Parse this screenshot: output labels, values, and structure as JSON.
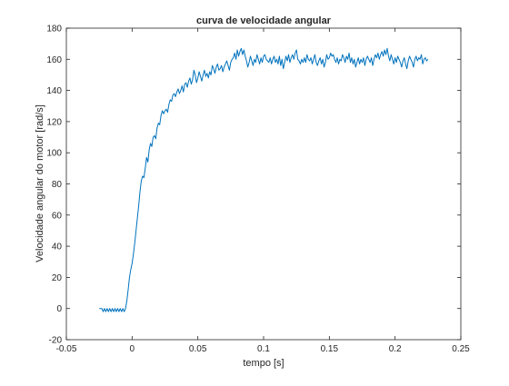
{
  "chart_data": {
    "type": "line",
    "title": "curva de velocidade angular",
    "xlabel": "tempo [s]",
    "ylabel": "Velocidade angular do motor [rad/s]",
    "xlim": [
      -0.05,
      0.25
    ],
    "ylim": [
      -20,
      180
    ],
    "xticks": [
      -0.05,
      0,
      0.05,
      0.1,
      0.15,
      0.2,
      0.25
    ],
    "xtick_labels": [
      "-0.05",
      "0",
      "0.05",
      "0.1",
      "0.15",
      "0.2",
      "0.25"
    ],
    "yticks": [
      -20,
      0,
      20,
      40,
      60,
      80,
      100,
      120,
      140,
      160,
      180
    ],
    "ytick_labels": [
      "-20",
      "0",
      "20",
      "40",
      "60",
      "80",
      "100",
      "120",
      "140",
      "160",
      "180"
    ],
    "grid": false,
    "line_color": "#0072BD",
    "series": [
      {
        "x": [
          -0.025,
          -0.023,
          -0.022,
          -0.021,
          -0.02,
          -0.019,
          -0.018,
          -0.017,
          -0.016,
          -0.015,
          -0.014,
          -0.013,
          -0.012,
          -0.011,
          -0.01,
          -0.009,
          -0.008,
          -0.007,
          -0.006,
          -0.005,
          -0.004,
          -0.003,
          -0.002,
          -0.001,
          0.0,
          0.001,
          0.002,
          0.003,
          0.004,
          0.005,
          0.006,
          0.007,
          0.008,
          0.009,
          0.01,
          0.011,
          0.012,
          0.013,
          0.014,
          0.015,
          0.016,
          0.017,
          0.018,
          0.019,
          0.02,
          0.021,
          0.022,
          0.023,
          0.024,
          0.025,
          0.026,
          0.027,
          0.028,
          0.029,
          0.03,
          0.031,
          0.032,
          0.033,
          0.034,
          0.035,
          0.036,
          0.037,
          0.038,
          0.039,
          0.04,
          0.041,
          0.042,
          0.043,
          0.044,
          0.045,
          0.046,
          0.047,
          0.048,
          0.049,
          0.05,
          0.051,
          0.052,
          0.053,
          0.054,
          0.055,
          0.056,
          0.057,
          0.058,
          0.059,
          0.06,
          0.061,
          0.062,
          0.063,
          0.064,
          0.065,
          0.066,
          0.067,
          0.068,
          0.069,
          0.07,
          0.071,
          0.072,
          0.073,
          0.074,
          0.075,
          0.076,
          0.077,
          0.078,
          0.079,
          0.08,
          0.081,
          0.082,
          0.083,
          0.084,
          0.085,
          0.086,
          0.087,
          0.088,
          0.089,
          0.09,
          0.091,
          0.092,
          0.093,
          0.094,
          0.095,
          0.096,
          0.097,
          0.098,
          0.099,
          0.1,
          0.101,
          0.102,
          0.103,
          0.104,
          0.105,
          0.106,
          0.107,
          0.108,
          0.109,
          0.11,
          0.111,
          0.112,
          0.113,
          0.114,
          0.115,
          0.116,
          0.117,
          0.118,
          0.119,
          0.12,
          0.121,
          0.122,
          0.123,
          0.124,
          0.125,
          0.126,
          0.127,
          0.128,
          0.129,
          0.13,
          0.131,
          0.132,
          0.133,
          0.134,
          0.135,
          0.136,
          0.137,
          0.138,
          0.139,
          0.14,
          0.141,
          0.142,
          0.143,
          0.144,
          0.145,
          0.146,
          0.147,
          0.148,
          0.149,
          0.15,
          0.151,
          0.152,
          0.153,
          0.154,
          0.155,
          0.156,
          0.157,
          0.158,
          0.159,
          0.16,
          0.161,
          0.162,
          0.163,
          0.164,
          0.165,
          0.166,
          0.167,
          0.168,
          0.169,
          0.17,
          0.171,
          0.172,
          0.173,
          0.174,
          0.175,
          0.176,
          0.177,
          0.178,
          0.179,
          0.18,
          0.181,
          0.182,
          0.183,
          0.184,
          0.185,
          0.186,
          0.187,
          0.188,
          0.189,
          0.19,
          0.191,
          0.192,
          0.193,
          0.194,
          0.195,
          0.196,
          0.197,
          0.198,
          0.199,
          0.2,
          0.201,
          0.202,
          0.203,
          0.204,
          0.205,
          0.206,
          0.207,
          0.208,
          0.209,
          0.21,
          0.211,
          0.212,
          0.213,
          0.214,
          0.215,
          0.216,
          0.217,
          0.218,
          0.219,
          0.22,
          0.221,
          0.222,
          0.223,
          0.224,
          0.225
        ],
        "y": [
          0,
          0,
          -2,
          0,
          -2,
          0,
          -2,
          0,
          -2,
          0,
          -2,
          0,
          -2,
          0,
          -2,
          0,
          -2,
          0,
          -2,
          0,
          5,
          12,
          20,
          25,
          29,
          35,
          42,
          50,
          58,
          66,
          75,
          82,
          85,
          84,
          90,
          97,
          94,
          102,
          106,
          104,
          110,
          111,
          109,
          116,
          119,
          118,
          124,
          127,
          125,
          127,
          128,
          126,
          131,
          134,
          133,
          137,
          138,
          136,
          139,
          141,
          138,
          140,
          143,
          139,
          144,
          145,
          142,
          146,
          148,
          144,
          147,
          153,
          150,
          145,
          148,
          152,
          149,
          146,
          150,
          153,
          149,
          151,
          148,
          152,
          150,
          156,
          154,
          151,
          155,
          157,
          153,
          154,
          156,
          152,
          155,
          157,
          159,
          156,
          153,
          158,
          160,
          161,
          164,
          160,
          166,
          162,
          165,
          167,
          163,
          166,
          162,
          159,
          155,
          158,
          162,
          159,
          156,
          160,
          158,
          163,
          160,
          157,
          161,
          158,
          162,
          163,
          160,
          159,
          158,
          161,
          157,
          160,
          162,
          158,
          160,
          157,
          162,
          156,
          160,
          154,
          158,
          162,
          159,
          163,
          158,
          161,
          163,
          160,
          164,
          166,
          160,
          159,
          157,
          160,
          158,
          161,
          158,
          163,
          160,
          159,
          161,
          157,
          160,
          163,
          158,
          156,
          159,
          161,
          157,
          160,
          155,
          158,
          163,
          160,
          161,
          164,
          162,
          163,
          160,
          158,
          161,
          157,
          160,
          159,
          163,
          161,
          158,
          162,
          160,
          164,
          158,
          161,
          157,
          160,
          155,
          158,
          161,
          157,
          160,
          158,
          161,
          156,
          160,
          162,
          160,
          158,
          161,
          156,
          160,
          163,
          161,
          164,
          160,
          163,
          165,
          162,
          166,
          163,
          167,
          162,
          159,
          163,
          160,
          157,
          161,
          158,
          162,
          160,
          158,
          155,
          159,
          161,
          157,
          154,
          159,
          162,
          160,
          158,
          155,
          160,
          162,
          159,
          161,
          160,
          163,
          157,
          160,
          161,
          159,
          160
        ]
      }
    ]
  }
}
